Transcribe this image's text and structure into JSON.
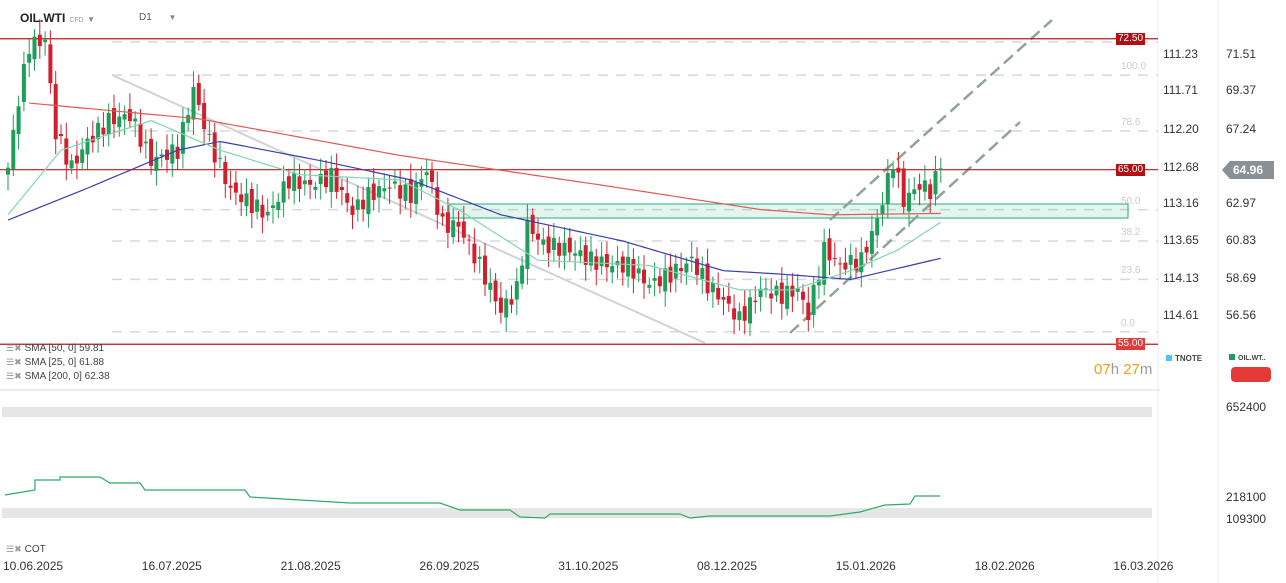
{
  "header": {
    "symbol": "OIL.WTI",
    "symbol_type": "CFD",
    "timeframe": "D1"
  },
  "colors": {
    "up": "#1e9e5a",
    "down": "#d0202e",
    "sma50": "#3b3ea8",
    "sma25": "#7fd6b0",
    "sma200": "#e05a55",
    "level": "#c0141c",
    "zone": "#1eb07a"
  },
  "right_axis": [
    "71.51",
    "69.37",
    "67.24",
    "64.96",
    "62.97",
    "60.83",
    "58.69",
    "56.56"
  ],
  "left_axis": [
    "111.23",
    "111.71",
    "112.20",
    "112.68",
    "113.16",
    "113.65",
    "114.13",
    "114.61"
  ],
  "current_price": "64.96",
  "levels": [
    {
      "label": "72.50",
      "value": 72.5
    },
    {
      "label": "65.00",
      "value": 65.0
    },
    {
      "label": "55.00",
      "value": 55.0
    }
  ],
  "fib_levels": [
    {
      "label": "100.0",
      "value": 70.3
    },
    {
      "label": "78.6",
      "value": 67.1
    },
    {
      "label": "50.0",
      "value": 62.6
    },
    {
      "label": "38.2",
      "value": 60.8
    },
    {
      "label": "23.6",
      "value": 58.6
    },
    {
      "label": "0.0",
      "value": 55.6
    }
  ],
  "indicators": [
    {
      "label": "SMA [50, 0] 59.81"
    },
    {
      "label": "SMA [25, 0] 61.88"
    },
    {
      "label": "SMA [200, 0] 62.38"
    }
  ],
  "countdown": {
    "h": "07",
    "h_unit": "h",
    "m": "27",
    "m_unit": "m"
  },
  "legend": [
    {
      "label": "TNOTE",
      "color": "#4fc3f7"
    },
    {
      "label": "OIL.WT..",
      "color": "#1e9e5a"
    }
  ],
  "cot": {
    "label": "COT",
    "axis": [
      "652400",
      "218100",
      "109300"
    ]
  },
  "dates": [
    "10.06.2025",
    "16.07.2025",
    "21.08.2025",
    "26.09.2025",
    "31.10.2025",
    "08.12.2025",
    "15.01.2026",
    "18.02.2026",
    "16.03.2026"
  ],
  "chart_data": {
    "type": "candlestick",
    "ylim": [
      55,
      72.5
    ],
    "close_keypoints": [
      [
        0,
        65.0
      ],
      [
        2,
        68.9
      ],
      [
        4,
        72.0
      ],
      [
        7,
        72.3
      ],
      [
        9,
        67.0
      ],
      [
        12,
        65.0
      ],
      [
        15,
        66.5
      ],
      [
        19,
        67.7
      ],
      [
        23,
        68.0
      ],
      [
        27,
        65.4
      ],
      [
        32,
        66.0
      ],
      [
        35,
        69.5
      ],
      [
        38,
        66.5
      ],
      [
        42,
        63.7
      ],
      [
        46,
        62.9
      ],
      [
        49,
        62.3
      ],
      [
        53,
        64.3
      ],
      [
        57,
        64.0
      ],
      [
        61,
        64.5
      ],
      [
        65,
        62.5
      ],
      [
        68,
        63.4
      ],
      [
        72,
        64.0
      ],
      [
        76,
        63.4
      ],
      [
        79,
        64.9
      ],
      [
        82,
        61.7
      ],
      [
        85,
        61.7
      ],
      [
        89,
        59.4
      ],
      [
        93,
        56.8
      ],
      [
        96,
        58.0
      ],
      [
        98,
        61.7
      ],
      [
        101,
        60.6
      ],
      [
        106,
        60.3
      ],
      [
        110,
        59.7
      ],
      [
        114,
        59.4
      ],
      [
        117,
        59.4
      ],
      [
        121,
        58.3
      ],
      [
        125,
        58.9
      ],
      [
        129,
        59.7
      ],
      [
        132,
        58.3
      ],
      [
        135,
        57.4
      ],
      [
        138,
        56.3
      ],
      [
        142,
        58.0
      ],
      [
        146,
        57.7
      ],
      [
        149,
        58.0
      ],
      [
        151,
        56.6
      ],
      [
        154,
        60.3
      ],
      [
        157,
        59.4
      ],
      [
        161,
        59.7
      ],
      [
        164,
        62.0
      ],
      [
        167,
        65.4
      ],
      [
        169,
        63.1
      ],
      [
        172,
        64.0
      ],
      [
        174,
        63.7
      ],
      [
        176,
        64.96
      ]
    ],
    "sma200": [
      [
        4,
        68.7
      ],
      [
        36,
        67.8
      ],
      [
        74,
        65.7
      ],
      [
        112,
        64.0
      ],
      [
        142,
        62.6
      ],
      [
        155,
        62.3
      ],
      [
        176,
        62.38
      ]
    ],
    "sma50": [
      [
        0,
        62.0
      ],
      [
        14,
        63.7
      ],
      [
        32,
        66.0
      ],
      [
        40,
        66.5
      ],
      [
        59,
        65.4
      ],
      [
        76,
        64.3
      ],
      [
        93,
        62.3
      ],
      [
        116,
        60.8
      ],
      [
        135,
        59.1
      ],
      [
        146,
        58.9
      ],
      [
        159,
        58.6
      ],
      [
        176,
        59.81
      ]
    ],
    "sma25": [
      [
        0,
        62.3
      ],
      [
        10,
        66.0
      ],
      [
        27,
        67.7
      ],
      [
        40,
        66.0
      ],
      [
        55,
        64.6
      ],
      [
        74,
        64.3
      ],
      [
        85,
        62.6
      ],
      [
        100,
        59.7
      ],
      [
        121,
        59.4
      ],
      [
        138,
        58.0
      ],
      [
        148,
        58.0
      ],
      [
        159,
        59.1
      ],
      [
        168,
        60.3
      ],
      [
        176,
        61.88
      ]
    ]
  }
}
